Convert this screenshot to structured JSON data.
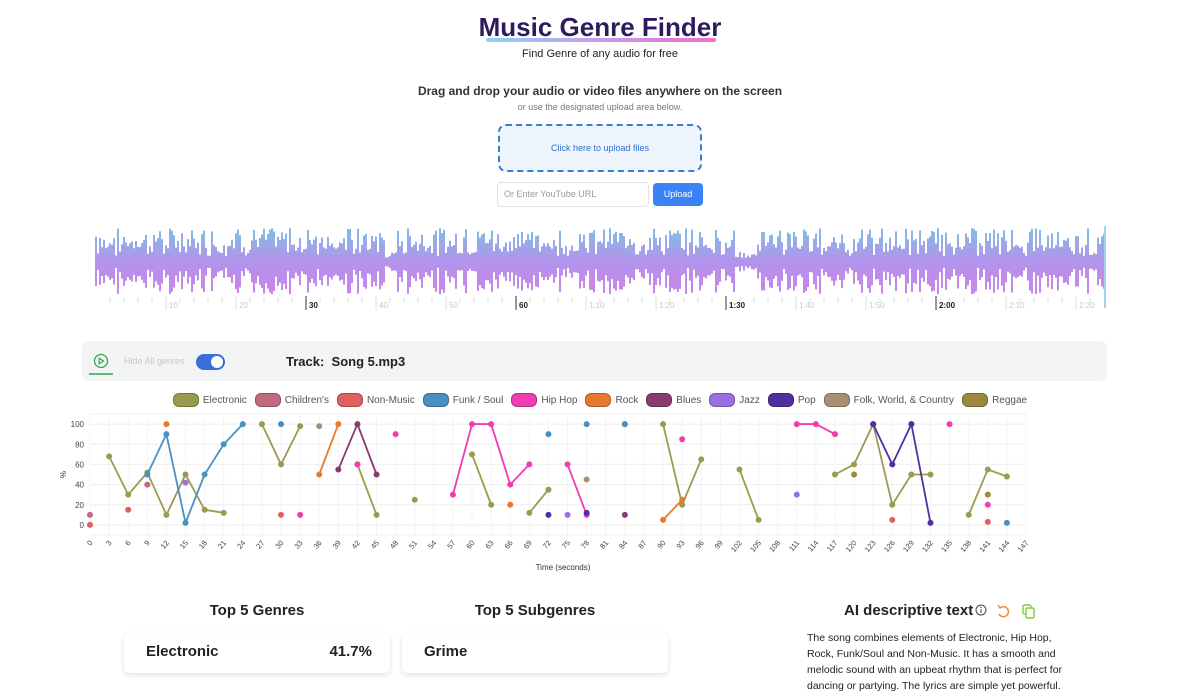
{
  "header": {
    "title": "Music Genre Finder",
    "subtitle": "Find Genre of any audio for free"
  },
  "upload": {
    "heading": "Drag and drop your audio or video files anywhere on the screen",
    "subheading": "or use the designated upload area below.",
    "dropzone": "Click here to upload files",
    "url_placeholder": "Or Enter YouTube URL",
    "button": "Upload"
  },
  "waveform": {
    "xlim": [
      0,
      144
    ],
    "ticks": [
      10,
      20,
      30,
      40,
      50,
      60,
      {
        "value": 70,
        "label": "1:10"
      },
      {
        "value": 80,
        "label": "1:20"
      },
      {
        "value": 90,
        "label": "1:30"
      },
      {
        "value": 100,
        "label": "1:40"
      },
      {
        "value": 110,
        "label": "1:50"
      },
      {
        "value": 120,
        "label": "2:00"
      },
      {
        "value": 130,
        "label": "2:10"
      },
      {
        "value": 140,
        "label": "2:20"
      }
    ]
  },
  "controls": {
    "hide_label": "Hide All genres",
    "track_label": "Track:",
    "track_name": "Song 5.mp3"
  },
  "chart_data": {
    "type": "line",
    "xlabel": "Time (seconds)",
    "ylabel": "%",
    "grid": true,
    "x": [
      0,
      3,
      6,
      9,
      12,
      15,
      18,
      21,
      24,
      27,
      30,
      33,
      36,
      39,
      42,
      45,
      48,
      51,
      54,
      57,
      60,
      63,
      66,
      69,
      72,
      75,
      78,
      81,
      84,
      87,
      90,
      93,
      96,
      99,
      102,
      105,
      108,
      111,
      114,
      117,
      120,
      123,
      126,
      129,
      132,
      135,
      138,
      141,
      144
    ],
    "xlim": [
      0,
      147
    ],
    "ylim": [
      -10,
      110
    ],
    "xticks": [
      0,
      3,
      6,
      9,
      12,
      15,
      18,
      21,
      24,
      27,
      30,
      33,
      36,
      39,
      42,
      45,
      48,
      51,
      54,
      57,
      60,
      63,
      66,
      69,
      72,
      75,
      78,
      81,
      84,
      87,
      90,
      93,
      96,
      99,
      102,
      105,
      108,
      111,
      114,
      117,
      120,
      123,
      126,
      129,
      132,
      135,
      138,
      141,
      144,
      147
    ],
    "yticks": [
      0,
      20,
      40,
      60,
      80,
      100
    ],
    "series": [
      {
        "name": "Electronic",
        "color": "#9b9b4f",
        "values": [
          null,
          68,
          30,
          52,
          10,
          50,
          15,
          12,
          null,
          100,
          60,
          98,
          null,
          null,
          60,
          10,
          null,
          25,
          null,
          null,
          70,
          20,
          null,
          12,
          35,
          null,
          null,
          null,
          100,
          null,
          100,
          20,
          65,
          null,
          55,
          5,
          null,
          null,
          null,
          50,
          60,
          100,
          20,
          50,
          50,
          null,
          10,
          55,
          48
        ]
      },
      {
        "name": "Children's",
        "color": "#c06a80",
        "values": [
          10,
          null,
          null,
          40,
          null,
          null,
          null,
          null,
          null,
          null,
          null,
          null,
          null,
          null,
          null,
          null,
          null,
          null,
          null,
          null,
          null,
          null,
          null,
          null,
          null,
          null,
          null,
          null,
          null,
          null,
          null,
          null,
          null,
          null,
          null,
          null,
          null,
          null,
          null,
          null,
          null,
          null,
          null,
          null,
          null,
          null,
          null,
          null,
          null
        ]
      },
      {
        "name": "Non-Music",
        "color": "#e06060",
        "values": [
          0,
          null,
          15,
          null,
          null,
          null,
          null,
          null,
          null,
          null,
          10,
          null,
          null,
          null,
          null,
          null,
          null,
          null,
          null,
          null,
          null,
          null,
          null,
          null,
          null,
          null,
          null,
          null,
          null,
          null,
          null,
          null,
          null,
          null,
          null,
          null,
          null,
          null,
          null,
          null,
          null,
          null,
          5,
          null,
          null,
          null,
          null,
          3,
          null
        ]
      },
      {
        "name": "Funk / Soul",
        "color": "#4a90c0",
        "values": [
          null,
          null,
          null,
          50,
          90,
          2,
          50,
          80,
          100,
          null,
          100,
          null,
          null,
          null,
          null,
          null,
          null,
          null,
          null,
          null,
          null,
          null,
          null,
          null,
          90,
          null,
          100,
          null,
          100,
          null,
          null,
          null,
          null,
          null,
          null,
          null,
          null,
          null,
          null,
          null,
          null,
          null,
          null,
          null,
          null,
          null,
          null,
          null,
          2
        ]
      },
      {
        "name": "Hip Hop",
        "color": "#f03cb0",
        "values": [
          null,
          null,
          null,
          null,
          null,
          null,
          null,
          null,
          null,
          null,
          null,
          10,
          null,
          null,
          60,
          null,
          90,
          null,
          null,
          30,
          100,
          100,
          40,
          60,
          null,
          60,
          10,
          null,
          null,
          null,
          null,
          85,
          null,
          null,
          null,
          null,
          null,
          100,
          100,
          90,
          null,
          null,
          null,
          100,
          null,
          100,
          null,
          20,
          null
        ]
      },
      {
        "name": "Rock",
        "color": "#e87a30",
        "values": [
          null,
          null,
          null,
          null,
          100,
          null,
          null,
          null,
          null,
          null,
          null,
          null,
          50,
          100,
          null,
          null,
          null,
          null,
          null,
          null,
          null,
          null,
          20,
          null,
          null,
          null,
          null,
          null,
          null,
          null,
          5,
          25,
          null,
          null,
          null,
          null,
          null,
          null,
          null,
          null,
          null,
          null,
          60,
          null,
          null,
          null,
          null,
          null,
          null
        ]
      },
      {
        "name": "Blues",
        "color": "#8a3a70",
        "values": [
          null,
          null,
          null,
          null,
          null,
          null,
          null,
          null,
          null,
          null,
          null,
          null,
          null,
          55,
          100,
          50,
          null,
          null,
          null,
          null,
          null,
          null,
          null,
          null,
          null,
          null,
          null,
          null,
          10,
          null,
          null,
          null,
          null,
          null,
          null,
          null,
          null,
          null,
          null,
          null,
          null,
          null,
          null,
          null,
          null,
          null,
          null,
          null,
          null
        ]
      },
      {
        "name": "Jazz",
        "color": "#9a70e0",
        "values": [
          null,
          null,
          null,
          null,
          null,
          42,
          null,
          null,
          null,
          null,
          null,
          null,
          null,
          null,
          null,
          null,
          null,
          null,
          null,
          null,
          null,
          null,
          null,
          null,
          null,
          10,
          null,
          null,
          null,
          null,
          null,
          null,
          null,
          null,
          null,
          null,
          null,
          30,
          null,
          null,
          null,
          null,
          null,
          null,
          null,
          null,
          null,
          null,
          null
        ]
      },
      {
        "name": "Pop",
        "color": "#5030a0",
        "values": [
          null,
          null,
          null,
          null,
          null,
          null,
          null,
          null,
          null,
          null,
          null,
          null,
          null,
          null,
          null,
          null,
          null,
          null,
          null,
          null,
          null,
          null,
          null,
          null,
          10,
          null,
          12,
          null,
          null,
          null,
          null,
          null,
          null,
          null,
          null,
          null,
          null,
          null,
          null,
          null,
          null,
          100,
          60,
          100,
          2,
          null,
          null,
          null,
          null
        ]
      },
      {
        "name": "Folk, World, & Country",
        "color": "#a89070",
        "values": [
          null,
          null,
          null,
          null,
          null,
          null,
          null,
          null,
          null,
          null,
          null,
          null,
          98,
          null,
          null,
          null,
          null,
          null,
          null,
          null,
          null,
          null,
          null,
          null,
          null,
          null,
          45,
          null,
          null,
          null,
          null,
          null,
          null,
          null,
          null,
          null,
          null,
          null,
          null,
          null,
          null,
          null,
          null,
          null,
          null,
          null,
          null,
          null,
          null
        ]
      },
      {
        "name": "Reggae",
        "color": "#9a8a40",
        "values": [
          null,
          null,
          null,
          null,
          null,
          null,
          null,
          null,
          null,
          null,
          null,
          null,
          null,
          null,
          null,
          null,
          null,
          null,
          null,
          null,
          null,
          null,
          null,
          null,
          null,
          null,
          null,
          null,
          null,
          null,
          null,
          null,
          null,
          null,
          null,
          null,
          null,
          null,
          null,
          null,
          50,
          null,
          null,
          null,
          null,
          null,
          null,
          30,
          null
        ]
      }
    ]
  },
  "results": {
    "genres_title": "Top 5 Genres",
    "top_genre": "Electronic",
    "top_genre_share": "41.7%",
    "subgenres_title": "Top 5 Subgenres",
    "top_subgenre": "Grime",
    "ai_title": "AI descriptive text",
    "ai_text": "The song combines elements of Electronic, Hip Hop, Rock, Funk/Soul and Non-Music. It has a smooth and melodic sound with an upbeat rhythm that is perfect for dancing or partying. The lyrics are simple yet powerful."
  }
}
